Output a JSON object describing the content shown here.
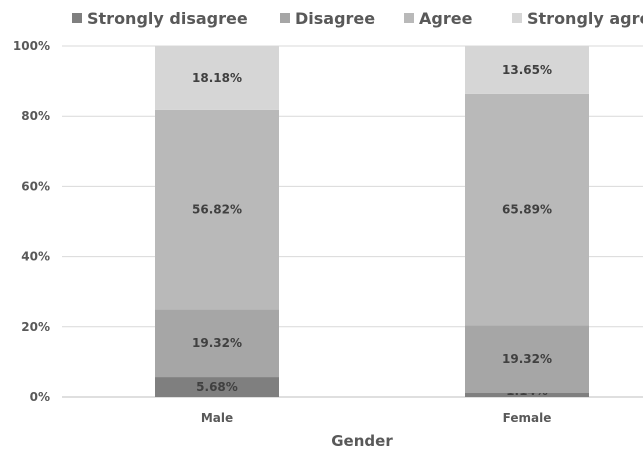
{
  "chart_data": {
    "type": "bar",
    "stacked": true,
    "categories": [
      "Male",
      "Female"
    ],
    "series": [
      {
        "name": "Strongly disagree",
        "values": [
          5.68,
          1.14
        ],
        "labels": [
          "5.68%",
          "1.14%"
        ],
        "color": "#7f7f7f"
      },
      {
        "name": "Disagree",
        "values": [
          19.32,
          19.32
        ],
        "labels": [
          "19.32%",
          "19.32%"
        ],
        "color": "#a6a6a6"
      },
      {
        "name": "Agree",
        "values": [
          56.82,
          65.89
        ],
        "labels": [
          "56.82%",
          "65.89%"
        ],
        "color": "#b9b9b9"
      },
      {
        "name": "Strongly agree",
        "values": [
          18.18,
          13.65
        ],
        "labels": [
          "18.18%",
          "13.65%"
        ],
        "color": "#d6d6d6"
      }
    ],
    "xlabel": "Gender",
    "ylabel": "",
    "ylim": [
      0,
      100
    ],
    "yticks": [
      "0%",
      "20%",
      "40%",
      "60%",
      "80%",
      "100%"
    ],
    "grid": true,
    "legend_position": "top"
  }
}
